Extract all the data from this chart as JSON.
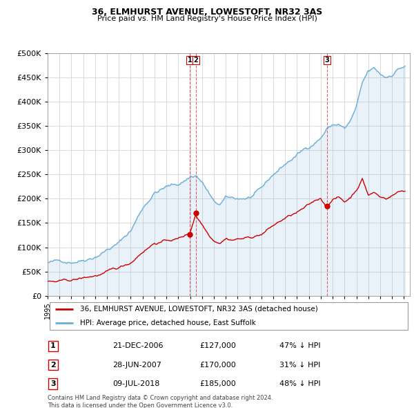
{
  "title": "36, ELMHURST AVENUE, LOWESTOFT, NR32 3AS",
  "subtitle": "Price paid vs. HM Land Registry's House Price Index (HPI)",
  "ylim": [
    0,
    500000
  ],
  "xlim_start": 1995.0,
  "xlim_end": 2025.5,
  "hpi_color": "#6baed6",
  "hpi_fill_color": "#deebf7",
  "price_color": "#cc0000",
  "bg_color": "#ffffff",
  "grid_color": "#cccccc",
  "transactions": [
    {
      "label": "1",
      "date": "21-DEC-2006",
      "price": 127000,
      "pct": "47% ↓ HPI",
      "x": 2006.97
    },
    {
      "label": "2",
      "date": "28-JUN-2007",
      "price": 170000,
      "pct": "31% ↓ HPI",
      "x": 2007.49
    },
    {
      "label": "3",
      "date": "09-JUL-2018",
      "price": 185000,
      "pct": "48% ↓ HPI",
      "x": 2018.52
    }
  ],
  "legend_property_label": "36, ELMHURST AVENUE, LOWESTOFT, NR32 3AS (detached house)",
  "legend_hpi_label": "HPI: Average price, detached house, East Suffolk",
  "footer": "Contains HM Land Registry data © Crown copyright and database right 2024.\nThis data is licensed under the Open Government Licence v3.0.",
  "title_fontsize": 9,
  "subtitle_fontsize": 8,
  "tick_fontsize": 7,
  "ytick_fontsize": 8
}
